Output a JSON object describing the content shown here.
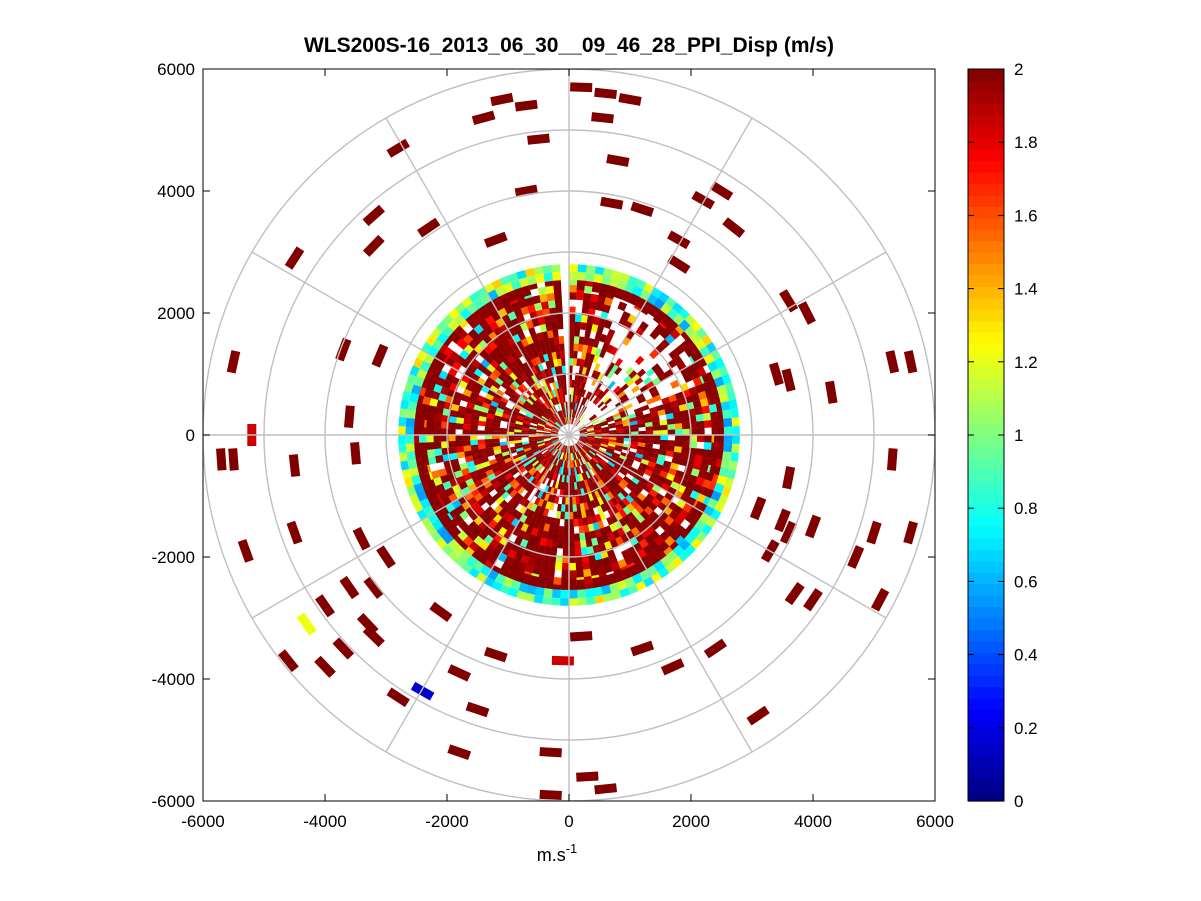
{
  "chart_data": {
    "type": "heatmap",
    "subtype": "polar-ppi",
    "title": "WLS200S-16_2013_06_30__09_46_28_PPI_Disp (m/s)",
    "xlabel": "m.s",
    "xlabel_sup": "-1",
    "ylabel": "",
    "xlim": [
      -6000,
      6000
    ],
    "ylim": [
      -6000,
      6000
    ],
    "xticks": [
      "-6000",
      "-4000",
      "-2000",
      "0",
      "2000",
      "4000",
      "6000"
    ],
    "yticks": [
      "6000",
      "4000",
      "2000",
      "0",
      "-2000",
      "-4000",
      "-6000"
    ],
    "range_rings": [
      1000,
      2000,
      3000,
      4000,
      5000,
      6000
    ],
    "spokes_deg": [
      0,
      30,
      60,
      90,
      120,
      150,
      180,
      210,
      240,
      270,
      300,
      330
    ],
    "dense_core_radius": 2800,
    "colorbar": {
      "min": 0,
      "max": 2,
      "ticks": [
        "0",
        "0.2",
        "0.4",
        "0.6",
        "0.8",
        "1",
        "1.2",
        "1.4",
        "1.6",
        "1.8",
        "2"
      ],
      "colormap": "jet"
    },
    "scatter_samples": [
      {
        "x": -2800,
        "y": 4700,
        "v": 2
      },
      {
        "x": -1100,
        "y": 5500,
        "v": 2
      },
      {
        "x": -700,
        "y": 5400,
        "v": 2
      },
      {
        "x": 600,
        "y": 5600,
        "v": 2
      },
      {
        "x": 1000,
        "y": 5500,
        "v": 2
      },
      {
        "x": 200,
        "y": 5700,
        "v": 2
      },
      {
        "x": 550,
        "y": 5200,
        "v": 2
      },
      {
        "x": -1400,
        "y": 5200,
        "v": 2
      },
      {
        "x": -500,
        "y": 4850,
        "v": 2
      },
      {
        "x": 800,
        "y": 4500,
        "v": 2
      },
      {
        "x": 2500,
        "y": 4000,
        "v": 2
      },
      {
        "x": 2200,
        "y": 3850,
        "v": 2
      },
      {
        "x": 2700,
        "y": 3400,
        "v": 2
      },
      {
        "x": -3200,
        "y": 3600,
        "v": 2
      },
      {
        "x": -3200,
        "y": 3100,
        "v": 2
      },
      {
        "x": -4500,
        "y": 2900,
        "v": 2
      },
      {
        "x": -2300,
        "y": 3400,
        "v": 2
      },
      {
        "x": -1200,
        "y": 3200,
        "v": 2
      },
      {
        "x": -700,
        "y": 4000,
        "v": 2
      },
      {
        "x": 1200,
        "y": 3700,
        "v": 2
      },
      {
        "x": 700,
        "y": 3800,
        "v": 2
      },
      {
        "x": 1800,
        "y": 3200,
        "v": 2
      },
      {
        "x": 1800,
        "y": 2800,
        "v": 2
      },
      {
        "x": 3900,
        "y": 2000,
        "v": 2
      },
      {
        "x": 3600,
        "y": 2200,
        "v": 2
      },
      {
        "x": 5300,
        "y": 1200,
        "v": 2
      },
      {
        "x": 5600,
        "y": 1200,
        "v": 2
      },
      {
        "x": 3400,
        "y": 1000,
        "v": 2
      },
      {
        "x": 3600,
        "y": 900,
        "v": 2
      },
      {
        "x": 4300,
        "y": 700,
        "v": 2
      },
      {
        "x": -5500,
        "y": 1200,
        "v": 2
      },
      {
        "x": -3700,
        "y": 1400,
        "v": 2
      },
      {
        "x": -3100,
        "y": 1300,
        "v": 2
      },
      {
        "x": -3600,
        "y": 300,
        "v": 2
      },
      {
        "x": -5200,
        "y": 0,
        "v": 1.85
      },
      {
        "x": -5700,
        "y": -400,
        "v": 2
      },
      {
        "x": -5500,
        "y": -400,
        "v": 2
      },
      {
        "x": -4500,
        "y": -500,
        "v": 2
      },
      {
        "x": -3500,
        "y": -300,
        "v": 2
      },
      {
        "x": -5300,
        "y": -1900,
        "v": 2
      },
      {
        "x": -4500,
        "y": -1600,
        "v": 2
      },
      {
        "x": -3400,
        "y": -1700,
        "v": 2
      },
      {
        "x": -3000,
        "y": -2000,
        "v": 2
      },
      {
        "x": -3600,
        "y": -2500,
        "v": 2
      },
      {
        "x": -3200,
        "y": -2500,
        "v": 2
      },
      {
        "x": -4000,
        "y": -2800,
        "v": 2
      },
      {
        "x": -3300,
        "y": -3100,
        "v": 2
      },
      {
        "x": -2100,
        "y": -2900,
        "v": 2
      },
      {
        "x": -4300,
        "y": -3100,
        "v": 1.22
      },
      {
        "x": -4600,
        "y": -3700,
        "v": 2
      },
      {
        "x": -4000,
        "y": -3800,
        "v": 2
      },
      {
        "x": -3700,
        "y": -3500,
        "v": 2
      },
      {
        "x": -2400,
        "y": -4200,
        "v": 0.15
      },
      {
        "x": -2800,
        "y": -4300,
        "v": 2
      },
      {
        "x": -1500,
        "y": -4500,
        "v": 2
      },
      {
        "x": -1800,
        "y": -3900,
        "v": 2
      },
      {
        "x": -1200,
        "y": -3600,
        "v": 2
      },
      {
        "x": -3200,
        "y": -3300,
        "v": 2
      },
      {
        "x": -1800,
        "y": -5200,
        "v": 2
      },
      {
        "x": -300,
        "y": -5200,
        "v": 2
      },
      {
        "x": -300,
        "y": -5900,
        "v": 2
      },
      {
        "x": 600,
        "y": -5800,
        "v": 2
      },
      {
        "x": 300,
        "y": -5600,
        "v": 2
      },
      {
        "x": -100,
        "y": -3700,
        "v": 1.85
      },
      {
        "x": 200,
        "y": -3300,
        "v": 2
      },
      {
        "x": 1200,
        "y": -3500,
        "v": 2
      },
      {
        "x": 1700,
        "y": -3800,
        "v": 2
      },
      {
        "x": 2400,
        "y": -3500,
        "v": 2
      },
      {
        "x": 3100,
        "y": -4600,
        "v": 2
      },
      {
        "x": 3700,
        "y": -2600,
        "v": 2
      },
      {
        "x": 4000,
        "y": -2700,
        "v": 2
      },
      {
        "x": 5100,
        "y": -2700,
        "v": 2
      },
      {
        "x": 3600,
        "y": -1600,
        "v": 2
      },
      {
        "x": 4000,
        "y": -1500,
        "v": 2
      },
      {
        "x": 5000,
        "y": -1600,
        "v": 2
      },
      {
        "x": 5600,
        "y": -1600,
        "v": 2
      },
      {
        "x": 3100,
        "y": -1200,
        "v": 2
      },
      {
        "x": 3500,
        "y": -1400,
        "v": 2
      },
      {
        "x": 3300,
        "y": -1900,
        "v": 2
      },
      {
        "x": 5300,
        "y": -400,
        "v": 2
      },
      {
        "x": 4700,
        "y": -2000,
        "v": 2
      },
      {
        "x": 3600,
        "y": -700,
        "v": 2
      }
    ]
  }
}
